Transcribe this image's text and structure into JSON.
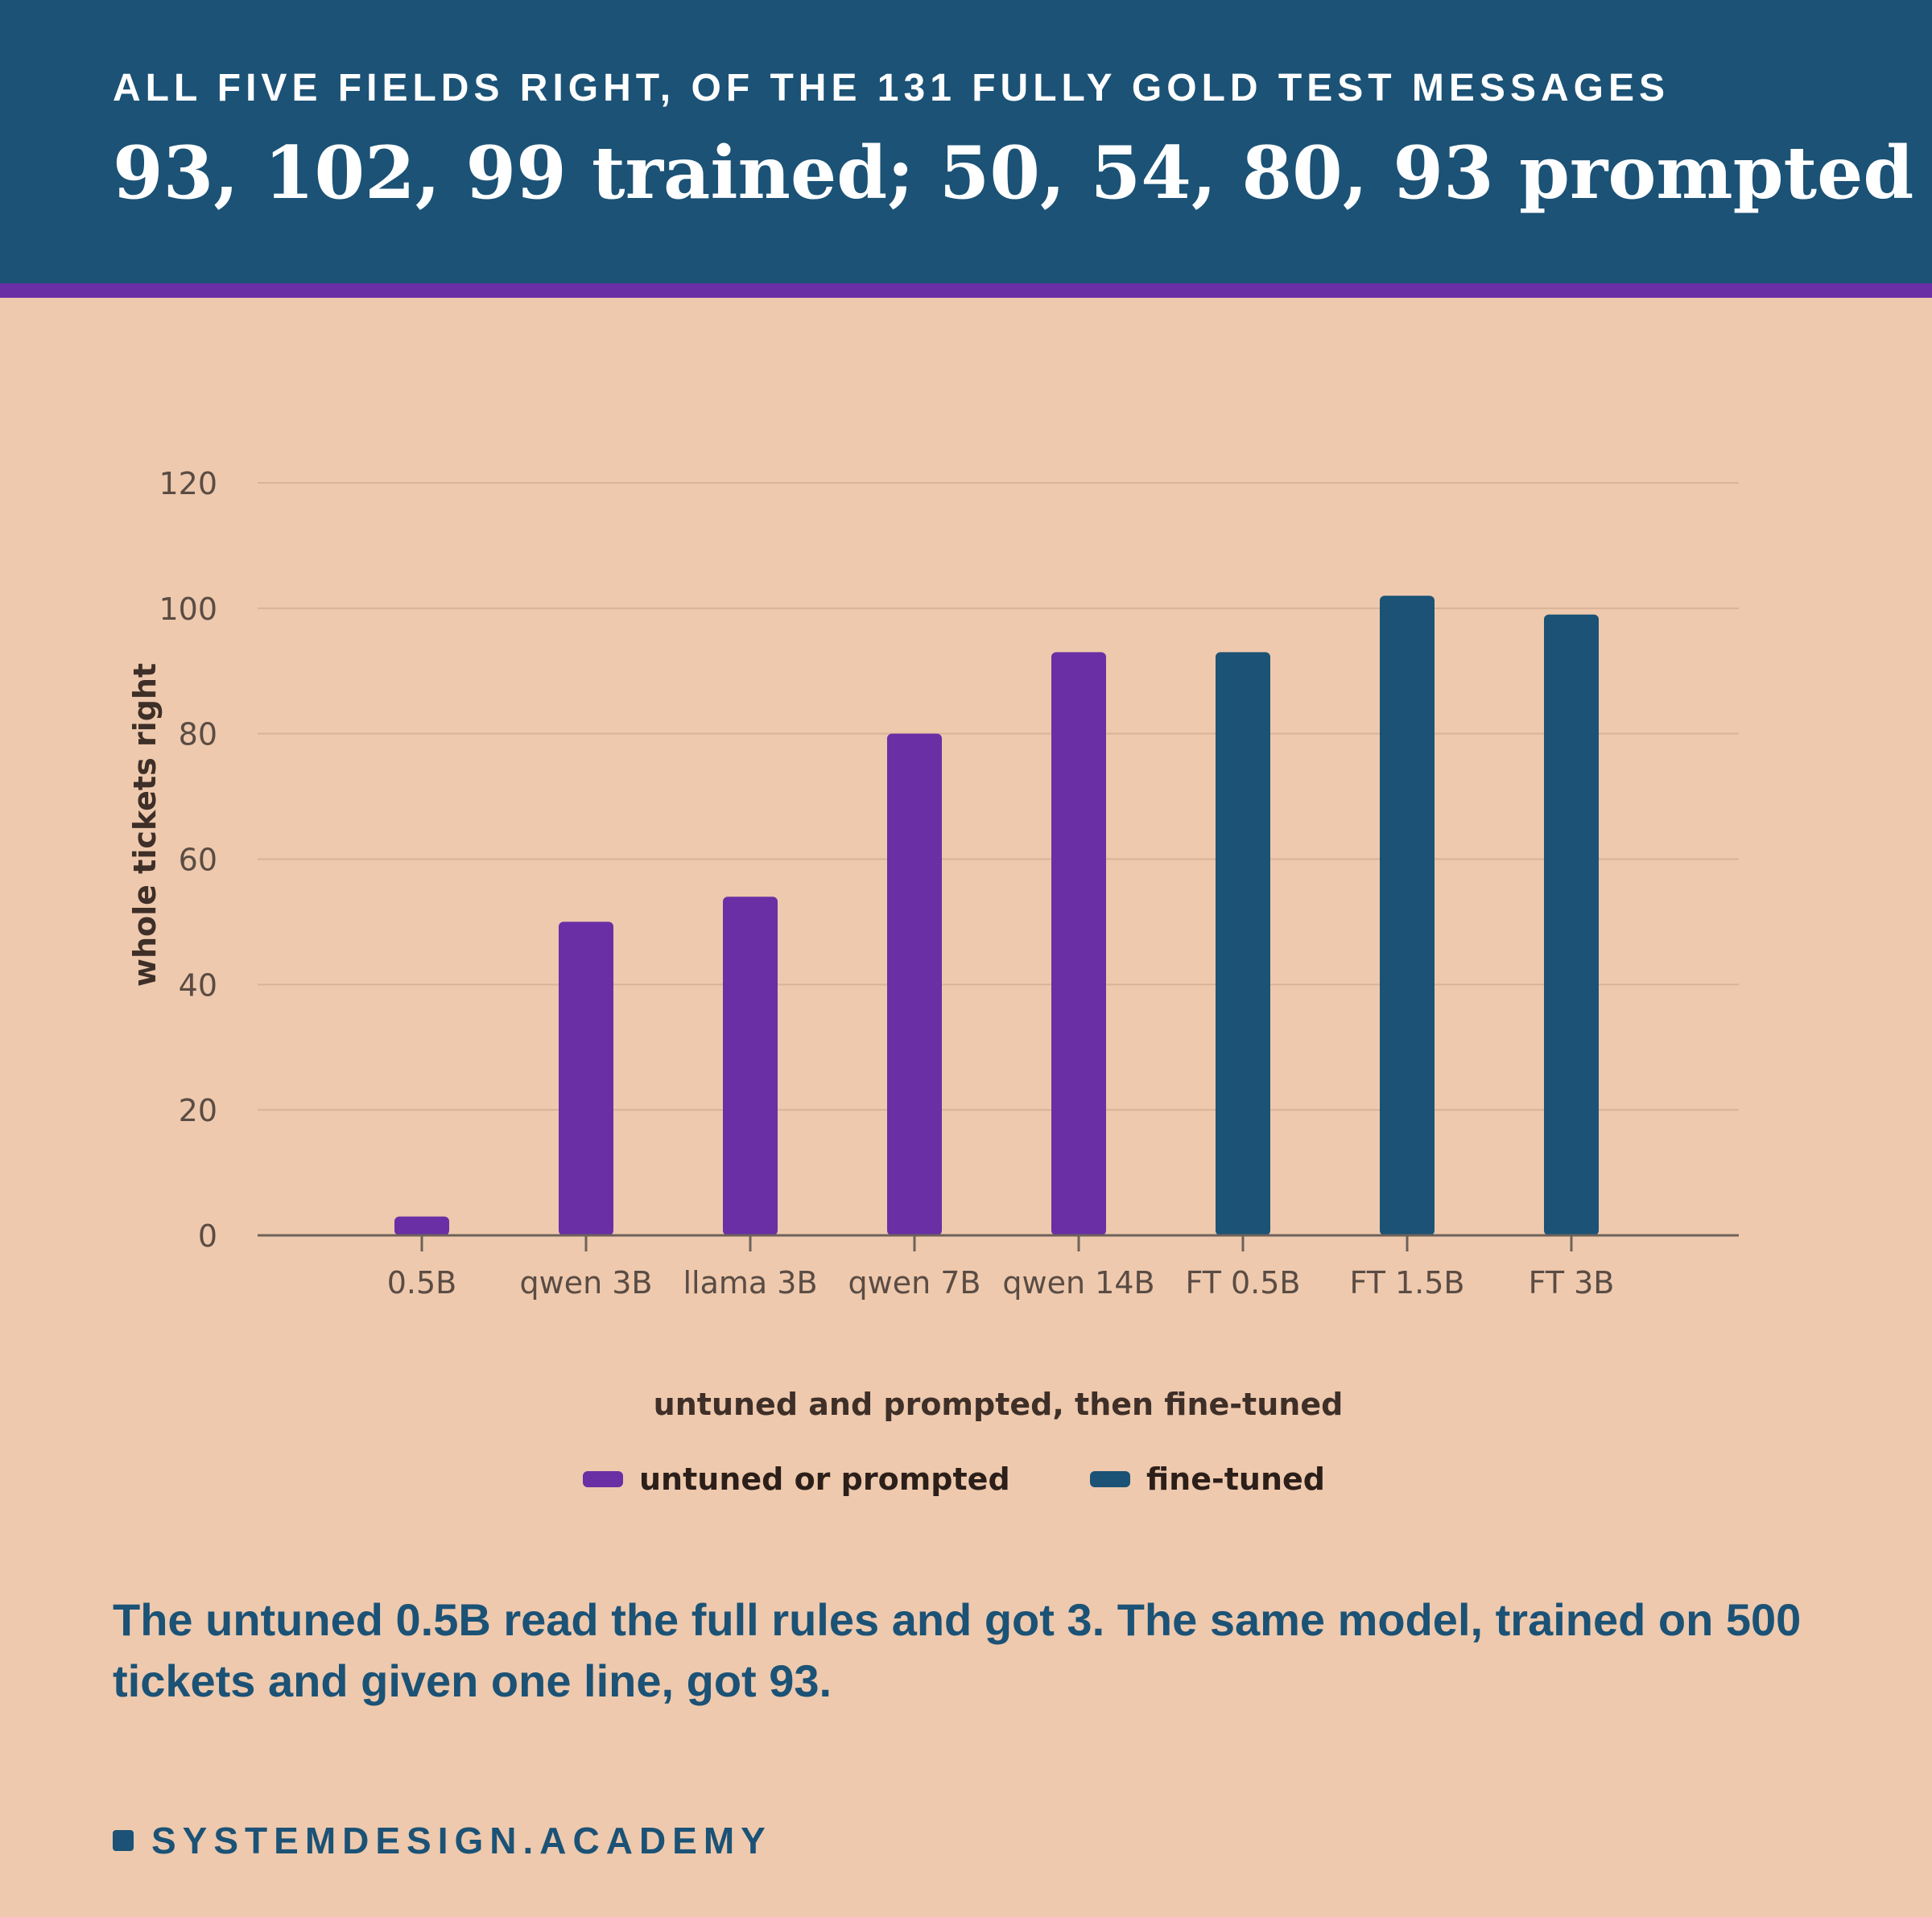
{
  "header": {
    "kicker": "ALL FIVE FIELDS RIGHT, OF THE 131 FULLY GOLD TEST MESSAGES",
    "headline": "93, 102, 99 trained; 50, 54, 80, 93 prompted"
  },
  "chart_data": {
    "type": "bar",
    "categories": [
      "0.5B",
      "qwen 3B",
      "llama 3B",
      "qwen 7B",
      "qwen 14B",
      "FT 0.5B",
      "FT 1.5B",
      "FT 3B"
    ],
    "series": [
      {
        "name": "untuned or prompted",
        "color": "#6a2fa5",
        "values": [
          3,
          50,
          54,
          80,
          93,
          null,
          null,
          null
        ]
      },
      {
        "name": "fine-tuned",
        "color": "#1b5276",
        "values": [
          null,
          null,
          null,
          null,
          null,
          93,
          102,
          99
        ]
      }
    ],
    "xlabel": "untuned and prompted, then fine-tuned",
    "ylabel": "whole tickets right",
    "ylim": [
      0,
      120
    ],
    "yticks": [
      0,
      20,
      40,
      60,
      80,
      100,
      120
    ],
    "grid": true,
    "legend": "bottom-center"
  },
  "caption": "The untuned 0.5B read the full rules and got 3. The same model, trained on 500 tickets and given one line, got 93.",
  "brand": "SYSTEMDESIGN.ACADEMY",
  "colors": {
    "background": "#eec9ad",
    "header": "#1b5276",
    "accent": "#6a2fa5"
  }
}
